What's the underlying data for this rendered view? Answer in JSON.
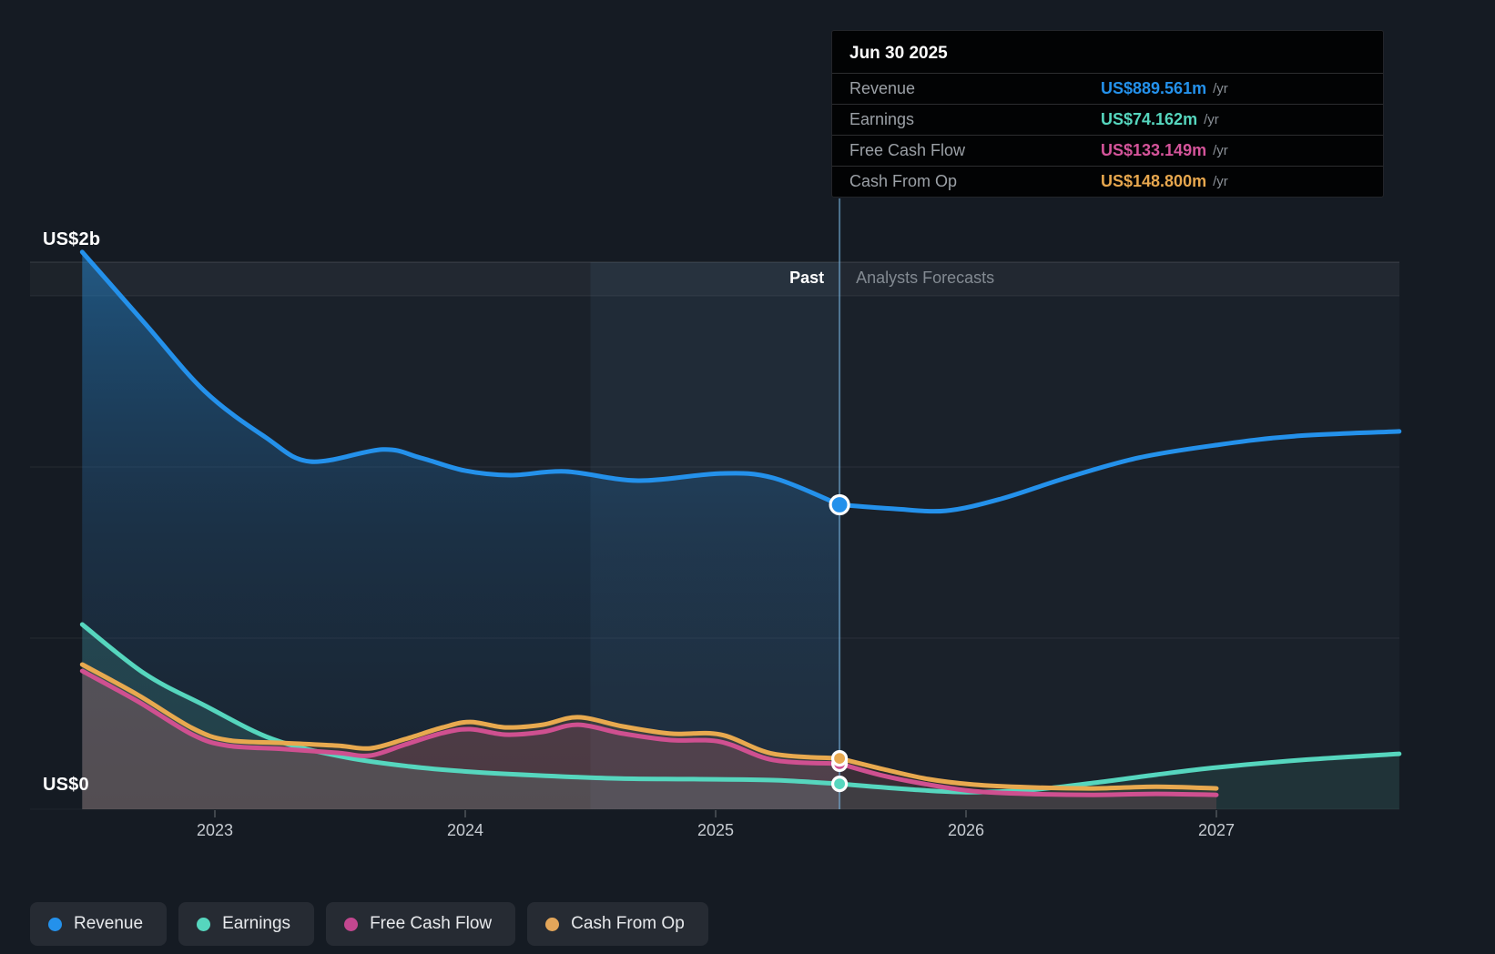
{
  "axis": {
    "y_top_label": "US$2b",
    "y_zero_label": "US$0",
    "x_ticks": [
      "2023",
      "2024",
      "2025",
      "2026",
      "2027"
    ]
  },
  "sections": {
    "past_label": "Past",
    "forecast_label": "Analysts Forecasts"
  },
  "tooltip": {
    "date": "Jun 30 2025",
    "rows": [
      {
        "label": "Revenue",
        "value": "US$889.561m",
        "unit": "/yr",
        "color": "#2491EB"
      },
      {
        "label": "Earnings",
        "value": "US$74.162m",
        "unit": "/yr",
        "color": "#56D6BE"
      },
      {
        "label": "Free Cash Flow",
        "value": "US$133.149m",
        "unit": "/yr",
        "color": "#D4549A"
      },
      {
        "label": "Cash From Op",
        "value": "US$148.800m",
        "unit": "/yr",
        "color": "#E7A74E"
      }
    ]
  },
  "legend": [
    {
      "label": "Revenue",
      "color": "#2491EB"
    },
    {
      "label": "Earnings",
      "color": "#56D6BE"
    },
    {
      "label": "Free Cash Flow",
      "color": "#C2478F"
    },
    {
      "label": "Cash From Op",
      "color": "#E3A65A"
    }
  ],
  "chart_data": {
    "type": "line",
    "title": "Past performance and analysts forecasts: Revenue, Earnings, Free Cash Flow, Cash From Op",
    "unit": "US$ millions per year",
    "x_axis": {
      "ticks": [
        2023,
        2024,
        2025,
        2026,
        2027
      ],
      "range": [
        2022.47,
        2027.73
      ]
    },
    "y_axis": {
      "min": 0,
      "max": 2000,
      "gridline_values": [
        500,
        1000,
        1500
      ],
      "top_label_value": 2000
    },
    "divider": {
      "t": 2025.495,
      "date": "Jun 30 2025"
    },
    "highlight_from": 2024.5,
    "legend_position": "bottom-left",
    "marker": {
      "t": 2025.495,
      "values": {
        "Revenue": 889.561,
        "Earnings": 74.162,
        "Free Cash Flow": 133.149,
        "Cash From Op": 148.8
      }
    },
    "series": [
      {
        "name": "Revenue",
        "color": "#2491EB",
        "past_fill": "url(#gRev)",
        "forecast_fill": null,
        "past": [
          [
            2022.47,
            1628
          ],
          [
            2022.72,
            1420
          ],
          [
            2022.96,
            1221
          ],
          [
            2023.2,
            1088
          ],
          [
            2023.38,
            1016
          ],
          [
            2023.67,
            1051
          ],
          [
            2023.82,
            1027
          ],
          [
            2024.0,
            989
          ],
          [
            2024.18,
            976
          ],
          [
            2024.4,
            987
          ],
          [
            2024.69,
            960
          ],
          [
            2025.02,
            981
          ],
          [
            2025.23,
            968
          ],
          [
            2025.495,
            889.561
          ]
        ],
        "forecast": [
          [
            2025.495,
            889.561
          ],
          [
            2025.71,
            878
          ],
          [
            2025.92,
            872
          ],
          [
            2026.14,
            907
          ],
          [
            2026.4,
            968
          ],
          [
            2026.69,
            1027
          ],
          [
            2027.0,
            1064
          ],
          [
            2027.31,
            1090
          ],
          [
            2027.73,
            1104
          ]
        ]
      },
      {
        "name": "Earnings",
        "color": "#56D6BE",
        "past_fill": "rgba(86,214,190,0.16)",
        "forecast_fill": "rgba(86,214,190,0.10)",
        "past": [
          [
            2022.47,
            540
          ],
          [
            2022.72,
            396
          ],
          [
            2022.96,
            303
          ],
          [
            2023.23,
            205
          ],
          [
            2023.52,
            152
          ],
          [
            2023.78,
            125
          ],
          [
            2024.03,
            109
          ],
          [
            2024.32,
            98
          ],
          [
            2024.62,
            90
          ],
          [
            2024.91,
            88
          ],
          [
            2025.23,
            85
          ],
          [
            2025.495,
            74.162
          ]
        ],
        "forecast": [
          [
            2025.495,
            74.162
          ],
          [
            2025.78,
            58
          ],
          [
            2026.0,
            50
          ],
          [
            2026.25,
            56
          ],
          [
            2026.51,
            77
          ],
          [
            2026.76,
            101
          ],
          [
            2027.0,
            122
          ],
          [
            2027.34,
            144
          ],
          [
            2027.73,
            162
          ]
        ]
      },
      {
        "name": "Cash From Op",
        "color": "#E8A94F",
        "past_fill": "rgba(231,167,78,0.13)",
        "forecast_fill": "rgba(231,167,78,0.08)",
        "past": [
          [
            2022.47,
            423
          ],
          [
            2022.69,
            335
          ],
          [
            2022.91,
            237
          ],
          [
            2023.05,
            202
          ],
          [
            2023.27,
            194
          ],
          [
            2023.49,
            186
          ],
          [
            2023.62,
            178
          ],
          [
            2023.76,
            205
          ],
          [
            2023.91,
            239
          ],
          [
            2024.02,
            255
          ],
          [
            2024.16,
            239
          ],
          [
            2024.31,
            247
          ],
          [
            2024.45,
            269
          ],
          [
            2024.63,
            242
          ],
          [
            2024.82,
            221
          ],
          [
            2025.02,
            218
          ],
          [
            2025.23,
            162
          ],
          [
            2025.495,
            148.8
          ]
        ],
        "forecast": [
          [
            2025.495,
            148.8
          ],
          [
            2025.67,
            117
          ],
          [
            2025.85,
            88
          ],
          [
            2026.03,
            72
          ],
          [
            2026.25,
            64
          ],
          [
            2026.51,
            61
          ],
          [
            2026.76,
            66
          ],
          [
            2027.0,
            61
          ]
        ]
      },
      {
        "name": "Free Cash Flow",
        "color": "#CF5090",
        "past_fill": "rgba(207,80,144,0.16)",
        "forecast_fill": "rgba(207,80,144,0.10)",
        "past": [
          [
            2022.47,
            404
          ],
          [
            2022.69,
            316
          ],
          [
            2022.91,
            218
          ],
          [
            2023.05,
            186
          ],
          [
            2023.27,
            176
          ],
          [
            2023.49,
            165
          ],
          [
            2023.62,
            157
          ],
          [
            2023.76,
            189
          ],
          [
            2023.91,
            223
          ],
          [
            2024.02,
            234
          ],
          [
            2024.16,
            218
          ],
          [
            2024.31,
            226
          ],
          [
            2024.45,
            247
          ],
          [
            2024.63,
            221
          ],
          [
            2024.82,
            202
          ],
          [
            2025.02,
            197
          ],
          [
            2025.23,
            144
          ],
          [
            2025.495,
            133.149
          ]
        ],
        "forecast": [
          [
            2025.495,
            133.149
          ],
          [
            2025.67,
            98
          ],
          [
            2025.85,
            72
          ],
          [
            2026.03,
            53
          ],
          [
            2026.25,
            45
          ],
          [
            2026.51,
            42
          ],
          [
            2026.76,
            45
          ],
          [
            2027.0,
            42
          ]
        ]
      }
    ]
  }
}
